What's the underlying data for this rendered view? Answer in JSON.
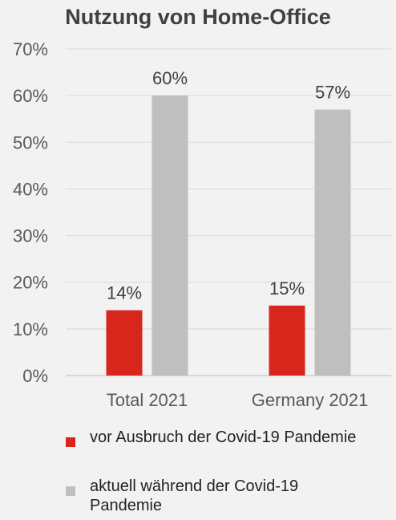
{
  "chart_data": {
    "type": "bar",
    "title": "Nutzung von Home-Office",
    "xlabel": "",
    "ylabel": "",
    "categories": [
      "Total 2021",
      "Germany 2021"
    ],
    "series": [
      {
        "name": "vor Ausbruch der Covid-19 Pandemie",
        "values": [
          14,
          15
        ],
        "labels": [
          "14%",
          "15%"
        ],
        "color": "#d9261c"
      },
      {
        "name": "aktuell während der Covid-19 Pandemie",
        "values": [
          60,
          57
        ],
        "labels": [
          "60%",
          "57%"
        ],
        "color": "#bfbfbf"
      }
    ],
    "ylim": [
      0,
      70
    ],
    "yticks": [
      0,
      10,
      20,
      30,
      40,
      50,
      60,
      70
    ],
    "ytick_labels": [
      "0%",
      "10%",
      "20%",
      "30%",
      "40%",
      "50%",
      "60%",
      "70%"
    ],
    "grid": true,
    "legend_position": "bottom-left"
  }
}
